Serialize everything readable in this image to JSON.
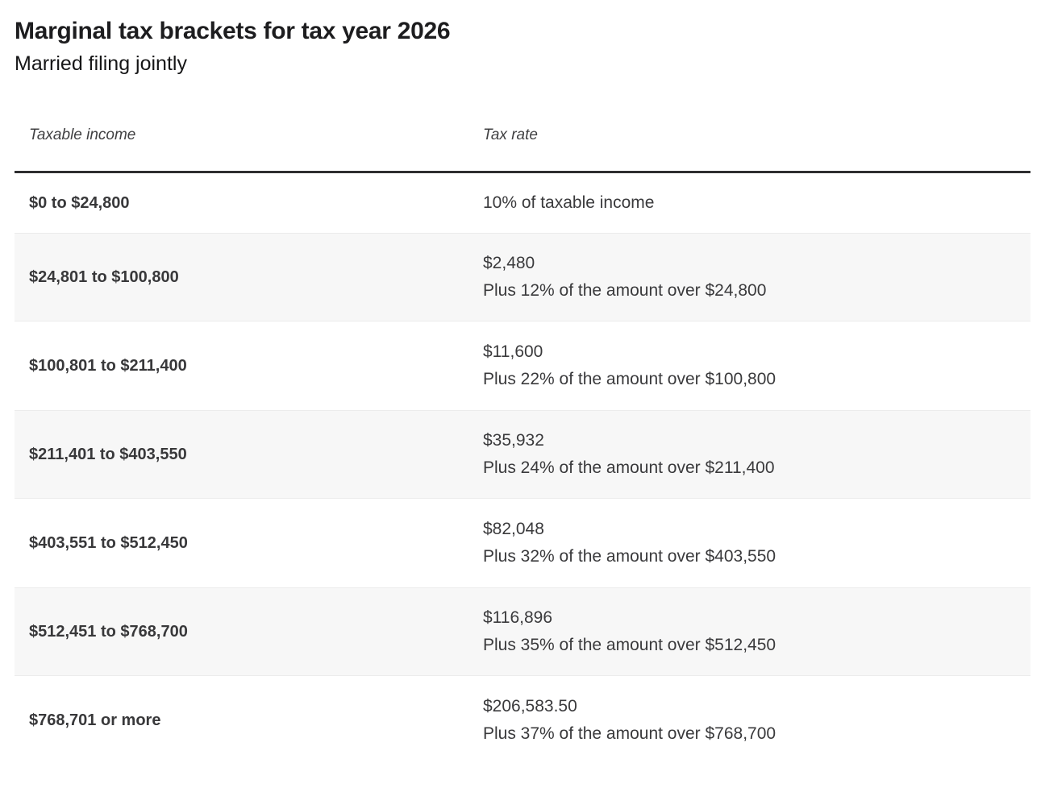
{
  "header": {
    "title": "Marginal tax brackets for tax year 2026",
    "subtitle": "Married filing jointly"
  },
  "table": {
    "columns": {
      "income": "Taxable income",
      "rate": "Tax rate"
    },
    "rows": [
      {
        "income": "$0 to $24,800",
        "lines": [
          "10% of taxable income"
        ]
      },
      {
        "income": "$24,801 to $100,800",
        "lines": [
          "$2,480",
          "Plus 12% of the amount over $24,800"
        ]
      },
      {
        "income": "$100,801 to $211,400",
        "lines": [
          "$11,600",
          "Plus 22% of the amount over $100,800"
        ]
      },
      {
        "income": "$211,401 to $403,550",
        "lines": [
          "$35,932",
          "Plus 24% of the amount over $211,400"
        ]
      },
      {
        "income": "$403,551 to $512,450",
        "lines": [
          "$82,048",
          "Plus 32% of the amount over $403,550"
        ]
      },
      {
        "income": "$512,451 to $768,700",
        "lines": [
          "$116,896",
          "Plus 35% of the amount over $512,450"
        ]
      },
      {
        "income": "$768,701 or more",
        "lines": [
          "$206,583.50",
          "Plus 37% of the amount over $768,700"
        ]
      }
    ],
    "colors": {
      "zebra_row_background": "#f7f7f7",
      "row_separator": "#ececec",
      "header_rule": "#2e2e30",
      "text_dark": "#38383a"
    }
  }
}
